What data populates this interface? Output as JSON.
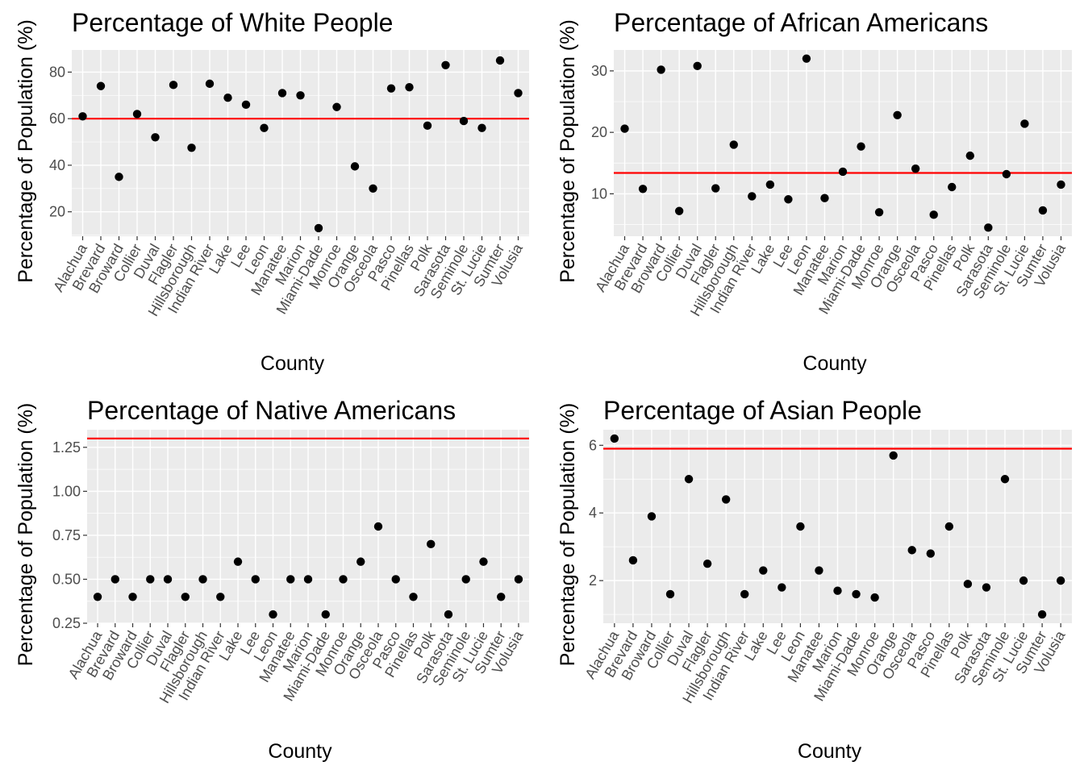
{
  "chart_data": [
    {
      "type": "scatter",
      "title": "Percentage of White People",
      "xlabel": "County",
      "ylabel": "Percentage of Population (%)",
      "categories": [
        "Alachua",
        "Brevard",
        "Broward",
        "Collier",
        "Duval",
        "Flagler",
        "Hillsborough",
        "Indian River",
        "Lake",
        "Lee",
        "Leon",
        "Manatee",
        "Marion",
        "Miami-Dade",
        "Monroe",
        "Orange",
        "Osceola",
        "Pasco",
        "Pinellas",
        "Polk",
        "Sarasota",
        "Seminole",
        "St. Lucie",
        "Sumter",
        "Volusia"
      ],
      "values": [
        61,
        74,
        35,
        62,
        52,
        74.5,
        47.5,
        75,
        69,
        66,
        56,
        71,
        70,
        13,
        65,
        39.5,
        30,
        73,
        73.5,
        57,
        83,
        59,
        56,
        85,
        71
      ],
      "reference_line": 60,
      "ylim": [
        9.5,
        89.5
      ],
      "yticks": [
        20,
        40,
        60,
        80
      ],
      "grid": true
    },
    {
      "type": "scatter",
      "title": "Percentage of African Americans",
      "xlabel": "County",
      "ylabel": "Percentage of Population (%)",
      "categories": [
        "Alachua",
        "Brevard",
        "Broward",
        "Collier",
        "Duval",
        "Flagler",
        "Hillsborough",
        "Indian River",
        "Lake",
        "Lee",
        "Leon",
        "Manatee",
        "Marion",
        "Miami-Dade",
        "Monroe",
        "Orange",
        "Osceola",
        "Pasco",
        "Pinellas",
        "Polk",
        "Sarasota",
        "Seminole",
        "St. Lucie",
        "Sumter",
        "Volusia"
      ],
      "values": [
        20.6,
        10.8,
        30.2,
        7.2,
        30.8,
        10.9,
        18,
        9.6,
        11.5,
        9.1,
        32,
        9.3,
        13.6,
        17.7,
        7,
        22.8,
        14.1,
        6.6,
        11.1,
        16.2,
        4.5,
        13.2,
        21.4,
        7.3,
        11.5
      ],
      "reference_line": 13.4,
      "ylim": [
        3.1,
        33.4
      ],
      "yticks": [
        10,
        20,
        30
      ],
      "grid": true
    },
    {
      "type": "scatter",
      "title": "Percentage of Native Americans",
      "xlabel": "County",
      "ylabel": "Percentage of Population (%)",
      "categories": [
        "Alachua",
        "Brevard",
        "Broward",
        "Collier",
        "Duval",
        "Flagler",
        "Hillsborough",
        "Indian River",
        "Lake",
        "Lee",
        "Leon",
        "Manatee",
        "Marion",
        "Miami-Dade",
        "Monroe",
        "Orange",
        "Osceola",
        "Pasco",
        "Pinellas",
        "Polk",
        "Sarasota",
        "Seminole",
        "St. Lucie",
        "Sumter",
        "Volusia"
      ],
      "values": [
        0.4,
        0.5,
        0.4,
        0.5,
        0.5,
        0.4,
        0.5,
        0.4,
        0.6,
        0.5,
        0.3,
        0.5,
        0.5,
        0.3,
        0.5,
        0.6,
        0.8,
        0.5,
        0.4,
        0.7,
        0.3,
        0.5,
        0.6,
        0.4,
        0.5
      ],
      "reference_line": 1.3,
      "ylim": [
        0.25,
        1.35
      ],
      "yticks": [
        0.25,
        0.5,
        0.75,
        1.0,
        1.25
      ],
      "ytick_labels": [
        "0.25",
        "0.50",
        "0.75",
        "1.00",
        "1.25"
      ],
      "grid": true
    },
    {
      "type": "scatter",
      "title": "Percentage of Asian People",
      "xlabel": "County",
      "ylabel": "Percentage of Population (%)",
      "categories": [
        "Alachua",
        "Brevard",
        "Broward",
        "Collier",
        "Duval",
        "Flagler",
        "Hillsborough",
        "Indian River",
        "Lake",
        "Lee",
        "Leon",
        "Manatee",
        "Marion",
        "Miami-Dade",
        "Monroe",
        "Orange",
        "Osceola",
        "Pasco",
        "Pinellas",
        "Polk",
        "Sarasota",
        "Seminole",
        "St. Lucie",
        "Sumter",
        "Volusia"
      ],
      "values": [
        6.2,
        2.6,
        3.9,
        1.6,
        5,
        2.5,
        4.4,
        1.6,
        2.3,
        1.8,
        3.6,
        2.3,
        1.7,
        1.6,
        1.5,
        5.7,
        2.9,
        2.8,
        3.6,
        1.9,
        1.8,
        5,
        2,
        1,
        2
      ],
      "reference_line": 5.9,
      "ylim": [
        0.74,
        6.46
      ],
      "yticks": [
        2,
        4,
        6
      ],
      "grid": true
    }
  ]
}
